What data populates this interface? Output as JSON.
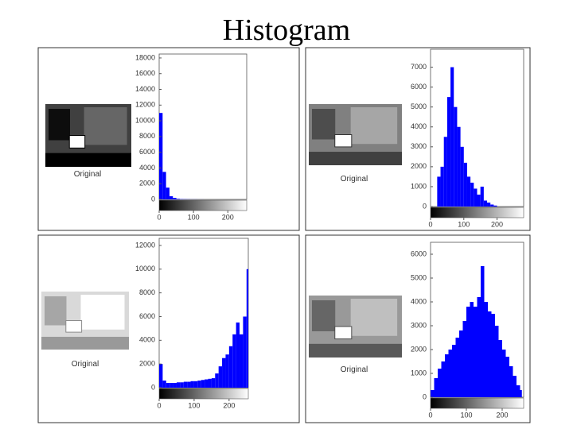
{
  "title": "Histogram",
  "chart_data": [
    {
      "type": "histogram",
      "caption": "Original",
      "color": "#0000ff",
      "bins": [
        0,
        10,
        20,
        30,
        40,
        50,
        60,
        70,
        80,
        90,
        100,
        110,
        120,
        130,
        140,
        150,
        160,
        170,
        180,
        190,
        200,
        210,
        220,
        230,
        240,
        250,
        255
      ],
      "values": [
        11000,
        3500,
        1500,
        400,
        200,
        80,
        40,
        30,
        20,
        10,
        10,
        5,
        5,
        0,
        0,
        0,
        0,
        0,
        0,
        0,
        0,
        0,
        0,
        0,
        0,
        0
      ],
      "xlim": [
        0,
        255
      ],
      "xticks": [
        0,
        100,
        200
      ],
      "ylim": [
        0,
        18500
      ],
      "yticks": [
        0,
        2000,
        4000,
        6000,
        8000,
        10000,
        12000,
        14000,
        16000,
        18000
      ]
    },
    {
      "type": "histogram",
      "caption": "Original",
      "color": "#0000ff",
      "bins": [
        0,
        10,
        20,
        30,
        40,
        50,
        60,
        70,
        80,
        90,
        100,
        110,
        120,
        130,
        140,
        150,
        160,
        170,
        180,
        190,
        200,
        210,
        220,
        230,
        240,
        250,
        255
      ],
      "values": [
        0,
        0,
        1500,
        2000,
        3500,
        5500,
        7000,
        5000,
        4000,
        3000,
        2200,
        1500,
        1200,
        900,
        600,
        1000,
        300,
        200,
        100,
        50,
        0,
        0,
        0,
        0,
        0,
        0
      ],
      "xlim": [
        0,
        280
      ],
      "xticks": [
        0,
        100,
        200
      ],
      "ylim": [
        0,
        7900
      ],
      "yticks": [
        0,
        1000,
        2000,
        3000,
        4000,
        5000,
        6000,
        7000
      ]
    },
    {
      "type": "histogram",
      "caption": "Original",
      "color": "#0000ff",
      "bins": [
        0,
        10,
        20,
        30,
        40,
        50,
        60,
        70,
        80,
        90,
        100,
        110,
        120,
        130,
        140,
        150,
        160,
        170,
        180,
        190,
        200,
        210,
        220,
        230,
        240,
        250,
        255
      ],
      "values": [
        2000,
        600,
        400,
        400,
        400,
        450,
        450,
        500,
        500,
        550,
        550,
        600,
        650,
        700,
        750,
        800,
        1200,
        1800,
        2500,
        2800,
        3500,
        4500,
        5500,
        4500,
        6000,
        10000
      ],
      "xlim": [
        0,
        255
      ],
      "xticks": [
        0,
        100,
        200
      ],
      "ylim": [
        0,
        12600
      ],
      "yticks": [
        0,
        2000,
        4000,
        6000,
        8000,
        10000,
        12000
      ]
    },
    {
      "type": "histogram",
      "caption": "Original",
      "color": "#0000ff",
      "bins": [
        0,
        10,
        20,
        30,
        40,
        50,
        60,
        70,
        80,
        90,
        100,
        110,
        120,
        130,
        140,
        150,
        160,
        170,
        180,
        190,
        200,
        210,
        220,
        230,
        240,
        250,
        255
      ],
      "values": [
        300,
        800,
        1200,
        1500,
        1800,
        2000,
        2200,
        2500,
        2800,
        3200,
        3800,
        4000,
        3800,
        4200,
        5500,
        4000,
        3600,
        3500,
        3000,
        2400,
        2000,
        1700,
        1300,
        900,
        500,
        300
      ],
      "xlim": [
        0,
        260
      ],
      "xticks": [
        0,
        100,
        200
      ],
      "ylim": [
        0,
        6500
      ],
      "yticks": [
        0,
        1000,
        2000,
        3000,
        4000,
        5000,
        6000
      ]
    }
  ]
}
